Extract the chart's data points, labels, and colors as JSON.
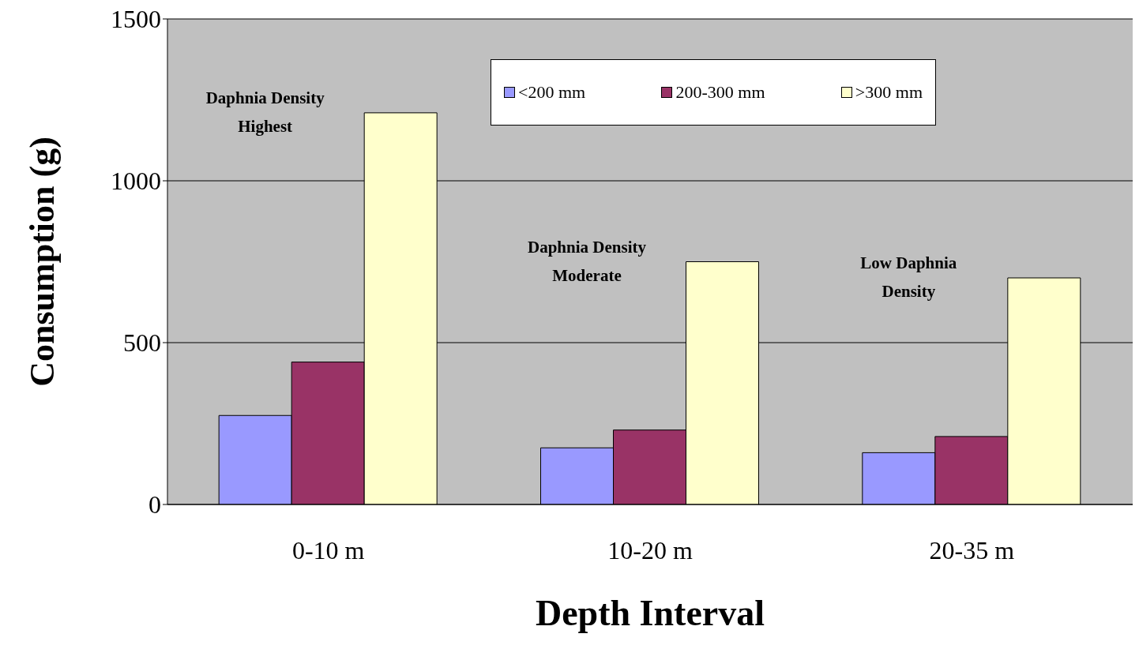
{
  "chart_data": {
    "type": "bar",
    "xlabel": "Depth Interval",
    "ylabel": "Consumption (g)",
    "categories": [
      "0-10 m",
      "10-20 m",
      "20-35 m"
    ],
    "series": [
      {
        "name": "<200 mm",
        "color": "#9999ff",
        "values": [
          275,
          175,
          160
        ]
      },
      {
        "name": "200-300 mm",
        "color": "#993366",
        "values": [
          440,
          230,
          210
        ]
      },
      {
        "name": ">300 mm",
        "color": "#ffffcc",
        "values": [
          1210,
          750,
          700
        ]
      }
    ],
    "ylim": [
      0,
      1500
    ],
    "yticks": [
      0,
      500,
      1000,
      1500
    ],
    "grid": "y",
    "legend": "top",
    "annotations": [
      "Daphnia Density Highest",
      "Daphnia Density Moderate",
      "Low Daphnia Density"
    ]
  }
}
